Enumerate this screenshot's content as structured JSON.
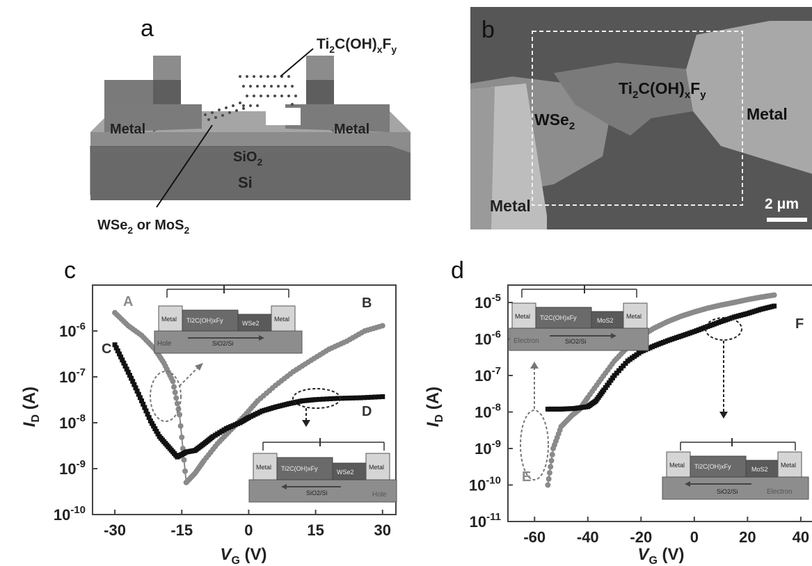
{
  "panels": {
    "a": {
      "letter": "a",
      "label_top": "Ti2C(OH)xFy",
      "metal_left": "Metal",
      "metal_right": "Metal",
      "sio2": "SiO2",
      "si": "Si",
      "label_bottom": "WSe2 or MoS2"
    },
    "b": {
      "letter": "b",
      "wse2": "WSe2",
      "ti2c": "Ti2C(OH)xFy",
      "metal_right": "Metal",
      "metal_bottom": "Metal",
      "scale": "2 μm"
    },
    "c": {
      "letter": "c",
      "ylabel": "I_D (A)",
      "xlabel": "V_G (V)",
      "labels": {
        "A": "A",
        "B": "B",
        "C": "C",
        "D": "D"
      },
      "inset_top": {
        "metal_l": "Metal",
        "mid": "Ti2C(OH)xFy",
        "channel": "WSe2",
        "metal_r": "Metal",
        "carrier": "Hole",
        "substrate": "SiO2/Si"
      },
      "inset_bottom": {
        "metal_l": "Metal",
        "mid": "Ti2C(OH)xFy",
        "channel": "WSe2",
        "metal_r": "Metal",
        "carrier": "Hole",
        "substrate": "SiO2/Si"
      }
    },
    "d": {
      "letter": "d",
      "ylabel": "I_D (A)",
      "xlabel": "V_G (V)",
      "labels": {
        "E": "E",
        "F": "F"
      },
      "inset_top": {
        "metal_l": "Metal",
        "mid": "Ti2C(OH)xFy",
        "channel": "MoS2",
        "metal_r": "Metal",
        "carrier": "Electron",
        "substrate": "SiO2/Si"
      },
      "inset_bottom": {
        "metal_l": "Metal",
        "mid": "Ti2C(OH)xFy",
        "channel": "MoS2",
        "metal_r": "Metal",
        "carrier": "Electron",
        "substrate": "SiO2/Si"
      }
    }
  },
  "chart_data": [
    {
      "type": "scatter",
      "xlabel": "V_G (V)",
      "ylabel": "I_D (A)",
      "xlim": [
        -35,
        33
      ],
      "ylim": [
        1e-10,
        1e-05
      ],
      "yscale": "log",
      "xticks": [
        "-30",
        "-15",
        "0",
        "15",
        "30"
      ],
      "yticks": [
        "10^-10",
        "10^-9",
        "10^-8",
        "10^-7",
        "10^-6"
      ],
      "series": [
        {
          "name": "gray",
          "color": "#8a8a8a",
          "x": [
            -30,
            -27,
            -24,
            -21,
            -19,
            -17,
            -15.5,
            -14,
            -12,
            -10,
            -7,
            -4,
            -1,
            2,
            6,
            10,
            14,
            18,
            22,
            26,
            30
          ],
          "y": [
            2.5e-06,
            1.3e-06,
            8e-07,
            4e-07,
            2e-07,
            8e-08,
            1.5e-08,
            5e-10,
            8e-10,
            1.5e-09,
            3.5e-09,
            7e-09,
            1.4e-08,
            3e-08,
            6.5e-08,
            1.3e-07,
            2.3e-07,
            4e-07,
            6e-07,
            1e-06,
            1.3e-06
          ]
        },
        {
          "name": "black",
          "color": "#111111",
          "x": [
            -30,
            -28,
            -26,
            -24,
            -22,
            -20,
            -18,
            -16,
            -14,
            -12,
            -10,
            -8,
            -5,
            -2,
            0,
            3,
            6,
            9,
            12,
            15,
            20,
            25,
            30
          ],
          "y": [
            5e-07,
            2e-07,
            8e-08,
            3e-08,
            1.1e-08,
            5e-09,
            3e-09,
            1.8e-09,
            2.3e-09,
            2.5e-09,
            3.5e-09,
            5e-09,
            7.5e-09,
            1e-08,
            1.3e-08,
            1.8e-08,
            2.2e-08,
            2.6e-08,
            3e-08,
            3.2e-08,
            3.4e-08,
            3.5e-08,
            3.7e-08
          ]
        }
      ]
    },
    {
      "type": "scatter",
      "xlabel": "V_G (V)",
      "ylabel": "I_D (A)",
      "xlim": [
        -70,
        45
      ],
      "ylim": [
        1e-11,
        3e-05
      ],
      "yscale": "log",
      "xticks": [
        "-60",
        "-40",
        "-20",
        "0",
        "20",
        "40"
      ],
      "yticks": [
        "10^-11",
        "10^-10",
        "10^-9",
        "10^-8",
        "10^-7",
        "10^-6",
        "10^-5"
      ],
      "series": [
        {
          "name": "gray",
          "color": "#8a8a8a",
          "x": [
            -55,
            -53,
            -50,
            -46,
            -43,
            -40,
            -35,
            -30,
            -25,
            -20,
            -15,
            -10,
            -5,
            0,
            5,
            10,
            15,
            20,
            25,
            30
          ],
          "y": [
            1e-10,
            1e-09,
            4e-09,
            8e-09,
            1.2e-08,
            2.5e-08,
            8e-08,
            2.5e-07,
            6e-07,
            1.2e-06,
            2e-06,
            3e-06,
            4.2e-06,
            5.5e-06,
            7e-06,
            8.5e-06,
            1e-05,
            1.2e-05,
            1.4e-05,
            1.6e-05
          ]
        },
        {
          "name": "black",
          "color": "#111111",
          "x": [
            -55,
            -50,
            -45,
            -40,
            -37,
            -34,
            -30,
            -25,
            -20,
            -15,
            -10,
            -5,
            0,
            5,
            10,
            15,
            20,
            25,
            30
          ],
          "y": [
            1.2e-08,
            1.2e-08,
            1.25e-08,
            1.4e-08,
            2e-08,
            4e-08,
            1e-07,
            2.5e-07,
            4.5e-07,
            6.5e-07,
            9e-07,
            1.2e-06,
            1.6e-06,
            2.2e-06,
            3e-06,
            4e-06,
            5e-06,
            6.5e-06,
            8e-06
          ]
        }
      ]
    }
  ]
}
